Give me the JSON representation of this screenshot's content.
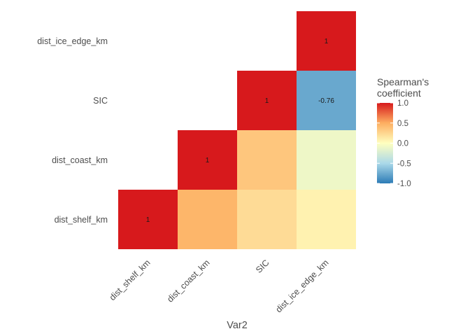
{
  "chart_data": {
    "type": "heatmap",
    "title": "",
    "xlabel": "Var2",
    "ylabel": "",
    "x_categories": [
      "dist_shelf_km",
      "dist_coast_km",
      "SIC",
      "dist_ice_edge_km"
    ],
    "y_categories": [
      "dist_ice_edge_km",
      "SIC",
      "dist_coast_km",
      "dist_shelf_km"
    ],
    "cells": [
      {
        "x": "dist_shelf_km",
        "y": "dist_shelf_km",
        "value": 1,
        "label": "1"
      },
      {
        "x": "dist_coast_km",
        "y": "dist_shelf_km",
        "value": 0.45,
        "label": ""
      },
      {
        "x": "dist_coast_km",
        "y": "dist_coast_km",
        "value": 1,
        "label": "1"
      },
      {
        "x": "SIC",
        "y": "dist_shelf_km",
        "value": 0.22,
        "label": ""
      },
      {
        "x": "SIC",
        "y": "dist_coast_km",
        "value": 0.35,
        "label": ""
      },
      {
        "x": "SIC",
        "y": "SIC",
        "value": 1,
        "label": "1"
      },
      {
        "x": "dist_ice_edge_km",
        "y": "dist_shelf_km",
        "value": 0.08,
        "label": ""
      },
      {
        "x": "dist_ice_edge_km",
        "y": "dist_coast_km",
        "value": -0.1,
        "label": ""
      },
      {
        "x": "dist_ice_edge_km",
        "y": "SIC",
        "value": -0.76,
        "label": "-0.76"
      },
      {
        "x": "dist_ice_edge_km",
        "y": "dist_ice_edge_km",
        "value": 1,
        "label": "1"
      }
    ],
    "legend": {
      "title_lines": [
        "Spearman's",
        "coefficient"
      ],
      "ticks": [
        1.0,
        0.5,
        0.0,
        -0.5,
        -1.0
      ],
      "tick_labels": [
        "1.0",
        "0.5",
        "0.0",
        "-0.5",
        "-1.0"
      ],
      "limits": [
        -1,
        1
      ],
      "placement": "right"
    },
    "palette": {
      "low": "#2c7bb6",
      "mid": "#ffffbf",
      "high": "#d7191c",
      "stops": [
        "#2c7bb6",
        "#abd9e9",
        "#ffffbf",
        "#fdae61",
        "#d7191c"
      ]
    },
    "grid": false
  }
}
